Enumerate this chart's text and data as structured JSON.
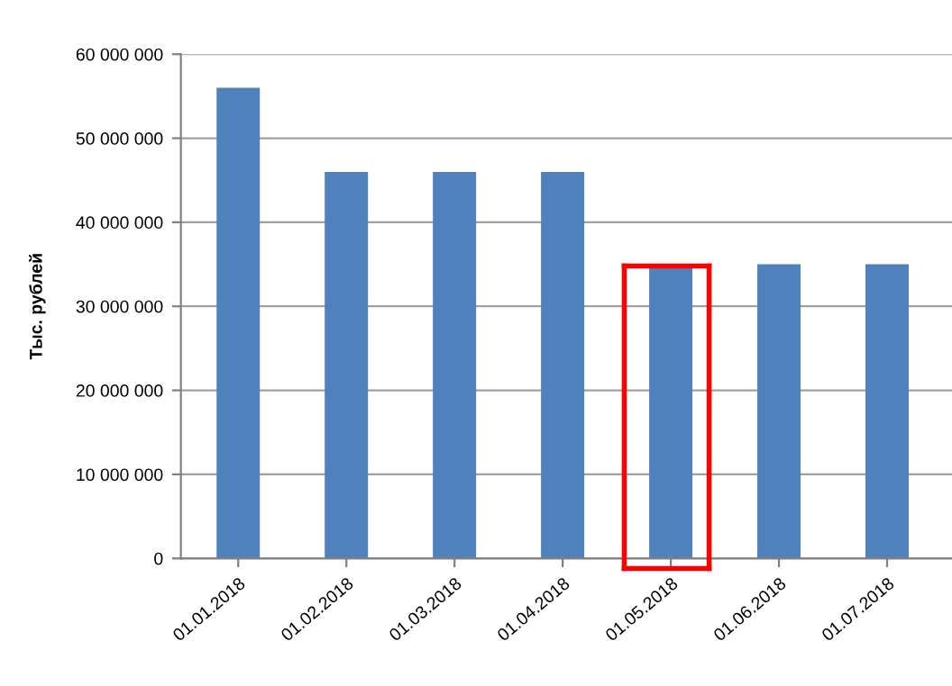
{
  "chart_data": {
    "type": "bar",
    "ylabel": "Тыс. рублей",
    "categories": [
      "01.01.2018",
      "01.02.2018",
      "01.03.2018",
      "01.04.2018",
      "01.05.2018",
      "01.06.2018",
      "01.07.2018"
    ],
    "values": [
      56000000,
      46000000,
      46000000,
      46000000,
      35000000,
      35000000,
      35000000
    ],
    "color": "#4f81bd",
    "ylim": [
      0,
      60000000
    ],
    "yticks": [
      {
        "value": 0,
        "label": "0"
      },
      {
        "value": 10000000,
        "label": "10 000 000"
      },
      {
        "value": 20000000,
        "label": "20 000 000"
      },
      {
        "value": 30000000,
        "label": "30 000 000"
      },
      {
        "value": 40000000,
        "label": "40 000 000"
      },
      {
        "value": 50000000,
        "label": "50 000 000"
      },
      {
        "value": 60000000,
        "label": "60 000 000"
      }
    ],
    "grid": "y",
    "legend": false
  }
}
